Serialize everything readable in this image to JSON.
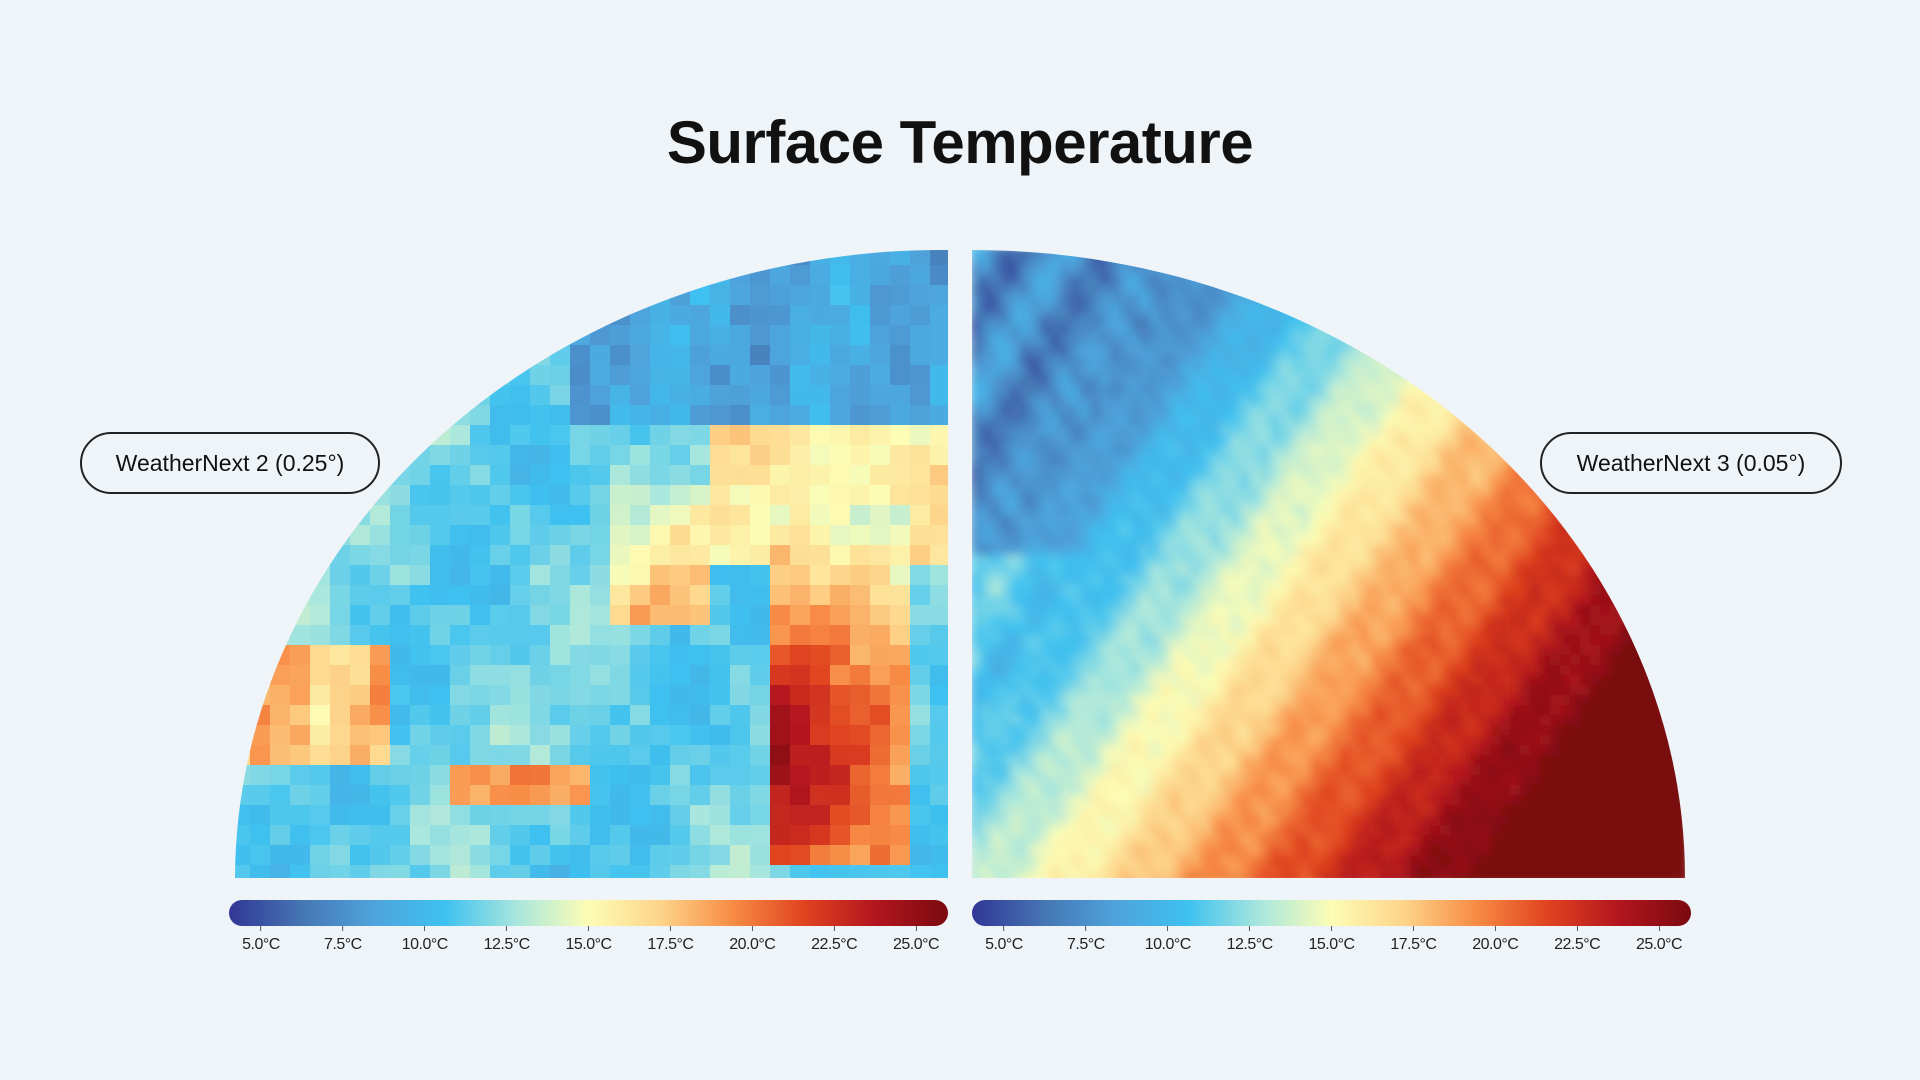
{
  "title": "Surface Temperature",
  "left_panel": {
    "label": "WeatherNext 2 (0.25°)"
  },
  "right_panel": {
    "label": "WeatherNext 3 (0.05°)"
  },
  "colorbar": {
    "ticks": [
      "5.0°C",
      "7.5°C",
      "10.0°C",
      "12.5°C",
      "15.0°C",
      "17.5°C",
      "20.0°C",
      "22.5°C",
      "25.0°C"
    ],
    "min": 5.0,
    "max": 25.0,
    "colors": [
      "#313695",
      "#4575b4",
      "#4fa3dc",
      "#3ec1f0",
      "#a8e6dd",
      "#fdfdb5",
      "#fdd48a",
      "#f88c45",
      "#e0431f",
      "#b2151e",
      "#7a0a10"
    ]
  },
  "legend_position": "bottom",
  "colors": {
    "background": "#eff4f8",
    "text": "#111111"
  }
}
